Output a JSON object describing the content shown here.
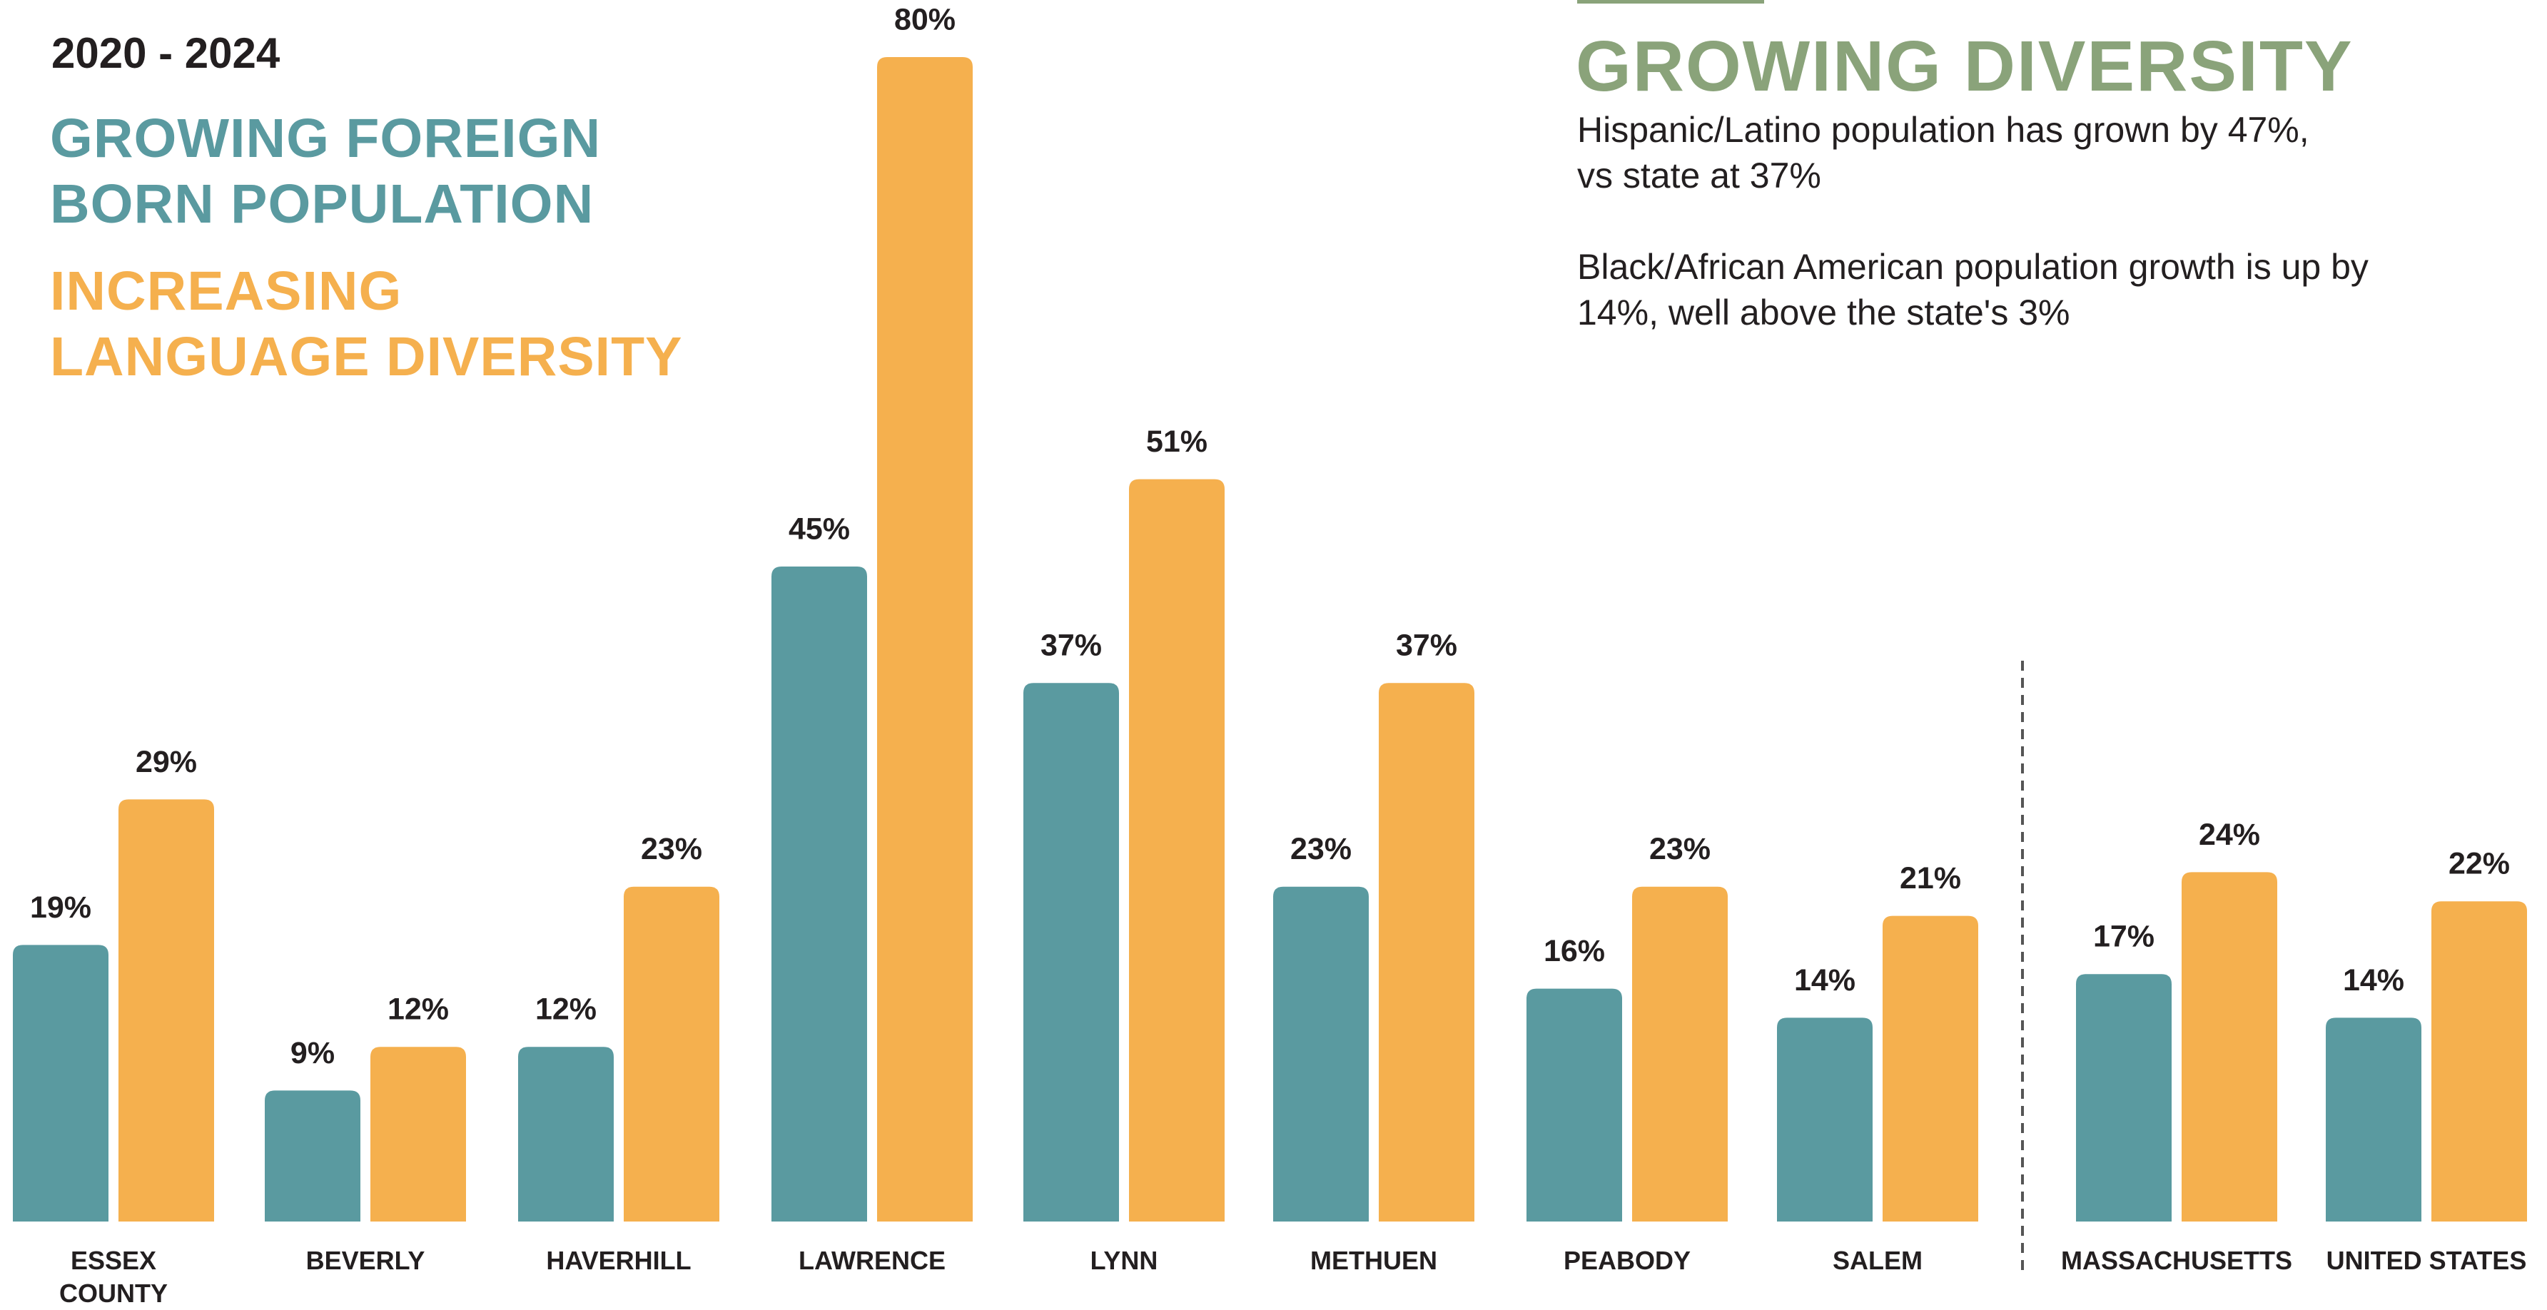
{
  "chart_data": {
    "type": "bar",
    "title": "2020 - 2024",
    "categories": [
      "ESSEX COUNTY",
      "BEVERLY",
      "HAVERHILL",
      "LAWRENCE",
      "LYNN",
      "METHUEN",
      "PEABODY",
      "SALEM",
      "MASSACHUSETTS",
      "UNITED STATES"
    ],
    "series": [
      {
        "name": "GROWING FOREIGN BORN POPULATION",
        "color": "#5a9aa0",
        "values": [
          19,
          9,
          12,
          45,
          37,
          23,
          16,
          14,
          17,
          14
        ],
        "value_labels": [
          "19%",
          "9%",
          "12%",
          "45%",
          "37%",
          "23%",
          "16%",
          "14%",
          "17%",
          "14%"
        ]
      },
      {
        "name": "INCREASING LANGUAGE DIVERSITY",
        "color": "#f5b04e",
        "values": [
          29,
          12,
          23,
          80,
          51,
          37,
          23,
          21,
          24,
          22
        ],
        "value_labels": [
          "29%",
          "12%",
          "23%",
          "80%",
          "51%",
          "37%",
          "23%",
          "21%",
          "24%",
          "22%"
        ]
      }
    ],
    "annotation_title": "GROWING DIVERSITY",
    "annotation_color": "#8aa37a",
    "annotations": [
      [
        "Hispanic/Latino population has grown by 47%,",
        "vs state at 37%"
      ],
      [
        "Black/African American population growth is up by",
        "14%, well above the state's 3%"
      ]
    ]
  }
}
